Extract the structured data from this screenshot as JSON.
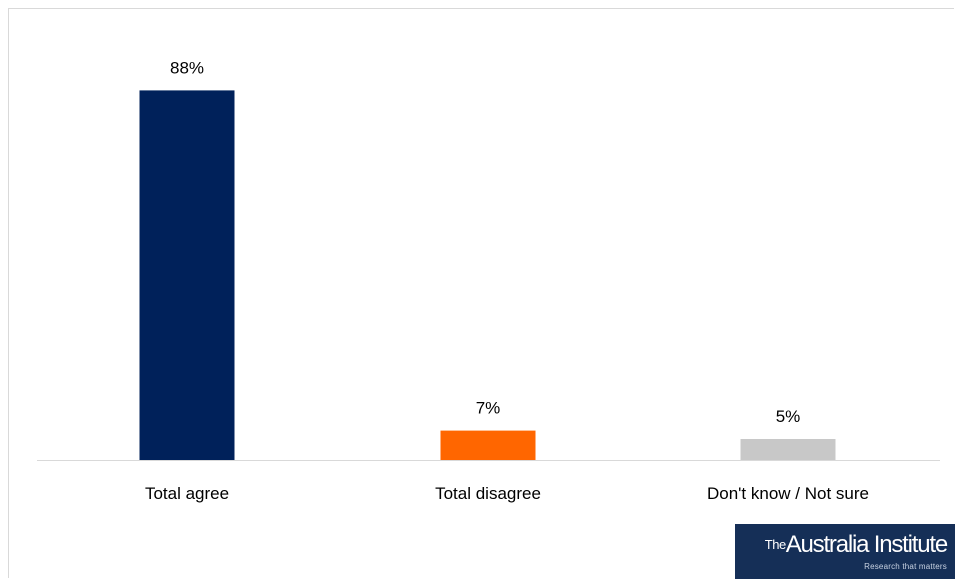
{
  "chart_data": {
    "type": "bar",
    "categories": [
      "Total agree",
      "Total disagree",
      "Don't know / Not sure"
    ],
    "values": [
      88,
      7,
      5
    ],
    "data_labels": [
      "88%",
      "7%",
      "5%"
    ],
    "colors": [
      "#00215a",
      "#ff6600",
      "#c8c8c8"
    ],
    "ylim": [
      0,
      100
    ],
    "grid": false,
    "legend": false
  },
  "logo": {
    "prefix": "The",
    "name": "Australia Institute",
    "tagline": "Research that matters"
  }
}
